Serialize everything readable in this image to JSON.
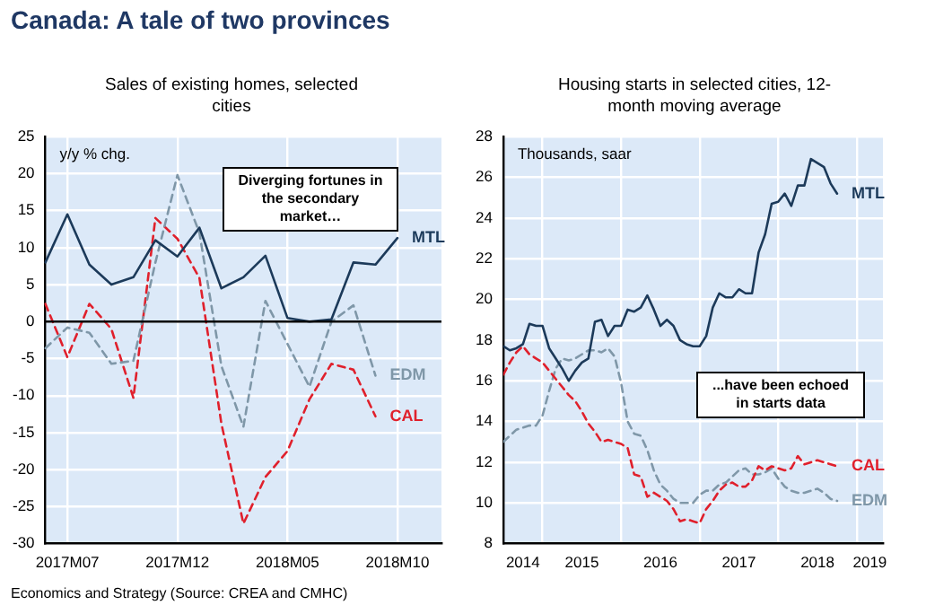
{
  "chart_data": [
    {
      "type": "line",
      "title": "Canada: A tale of two provinces",
      "subtitle": "Sales of existing homes, selected cities",
      "ylabel": "y/y % chg.",
      "annotations": [
        "Diverging fortunes in the secondary market…",
        "Economics and Strategy (Source: CREA and CMHC)"
      ],
      "categories": [
        null,
        "2017M07",
        null,
        null,
        null,
        null,
        "2017M12",
        null,
        null,
        null,
        null,
        "2018M05",
        null,
        null,
        null,
        null,
        "2018M10",
        null,
        null
      ],
      "series": [
        {
          "name": "MTL",
          "color": "#1c3a5a",
          "line_style": "solid",
          "values": [
            8,
            14.5,
            7.7,
            5,
            6,
            11,
            8.8,
            12.7,
            4.5,
            6,
            8.9,
            0.5,
            0,
            0.3,
            8,
            7.7,
            11.3,
            null,
            null
          ]
        },
        {
          "name": "EDM",
          "color": "#7f97a8",
          "line_style": "dashed",
          "values": [
            -3.6,
            -0.8,
            -1.5,
            -5.7,
            -5.3,
            8,
            19.8,
            12,
            -6,
            -14.2,
            2.8,
            -3,
            -8.8,
            0,
            2.2,
            -7.3,
            null,
            null,
            null
          ]
        },
        {
          "name": "CAL",
          "color": "#e0202c",
          "line_style": "dashed",
          "values": [
            2.4,
            -4.8,
            2.4,
            -1,
            -10.3,
            14,
            11.2,
            5.9,
            -13.8,
            -27.3,
            -21,
            -17.5,
            -10.5,
            -5.7,
            -6.5,
            -12.8,
            null,
            null,
            null
          ]
        }
      ],
      "ylim": [
        -30,
        25
      ],
      "yticks": [
        -30,
        -25,
        -20,
        -15,
        -10,
        -5,
        0,
        5,
        10,
        15,
        20,
        25
      ],
      "ref_lines": [
        {
          "axis": "y",
          "value": 0,
          "color": "#000000"
        }
      ],
      "grid": true,
      "legend": false,
      "marker": "none"
    },
    {
      "type": "line",
      "subtitle": "Housing starts in selected cities, 12-month moving average",
      "ylabel": "Thousands, saar",
      "annotations": [
        "...have been echoed in starts data"
      ],
      "x": [
        "2014-07",
        "2014-08",
        "2014-09",
        "2014-10",
        "2014-11",
        "2014-12",
        "2015-01",
        "2015-02",
        "2015-03",
        "2015-04",
        "2015-05",
        "2015-06",
        "2015-07",
        "2015-08",
        "2015-09",
        "2015-10",
        "2015-11",
        "2015-12",
        "2016-01",
        "2016-02",
        "2016-03",
        "2016-04",
        "2016-05",
        "2016-06",
        "2016-07",
        "2016-08",
        "2016-09",
        "2016-10",
        "2016-11",
        "2016-12",
        "2017-01",
        "2017-02",
        "2017-03",
        "2017-04",
        "2017-05",
        "2017-06",
        "2017-07",
        "2017-08",
        "2017-09",
        "2017-10",
        "2017-11",
        "2017-12",
        "2018-01",
        "2018-02",
        "2018-03",
        "2018-04",
        "2018-05",
        "2018-06",
        "2018-07",
        "2018-08",
        "2018-09",
        "2018-10"
      ],
      "series": [
        {
          "name": "MTL",
          "color": "#1c3a5a",
          "line_style": "solid",
          "values": [
            17.7,
            17.5,
            17.6,
            17.8,
            18.8,
            18.7,
            18.7,
            17.6,
            17.1,
            16.6,
            16.0,
            16.5,
            16.9,
            17.1,
            18.9,
            19.0,
            18.2,
            18.7,
            18.7,
            19.5,
            19.4,
            19.6,
            20.2,
            19.5,
            18.7,
            19.0,
            18.7,
            18.0,
            17.8,
            17.7,
            17.7,
            18.2,
            19.6,
            20.3,
            20.1,
            20.1,
            20.5,
            20.3,
            20.3,
            22.3,
            23.2,
            24.7,
            24.8,
            25.2,
            24.6,
            25.6,
            25.6,
            26.9,
            26.7,
            26.5,
            25.7,
            25.2
          ]
        },
        {
          "name": "CAL",
          "color": "#e0202c",
          "line_style": "dashed",
          "values": [
            16.3,
            16.9,
            17.4,
            17.7,
            17.3,
            17.1,
            16.9,
            16.5,
            16.1,
            15.7,
            15.3,
            15.0,
            14.5,
            13.9,
            13.5,
            13.0,
            13.1,
            13.0,
            12.9,
            12.7,
            11.4,
            11.3,
            10.3,
            10.5,
            10.3,
            10.1,
            9.7,
            9.1,
            9.2,
            9.1,
            9.0,
            9.7,
            10.1,
            10.6,
            10.9,
            11.0,
            10.8,
            10.8,
            11.1,
            11.8,
            11.6,
            11.8,
            11.7,
            11.6,
            11.7,
            12.3,
            11.9,
            12.0,
            12.1,
            12.0,
            11.9,
            11.8
          ]
        },
        {
          "name": "EDM",
          "color": "#7f97a8",
          "line_style": "dashed",
          "values": [
            13.0,
            13.3,
            13.6,
            13.7,
            13.8,
            13.8,
            14.3,
            15.5,
            16.6,
            17.1,
            17.0,
            17.1,
            17.3,
            17.5,
            17.5,
            17.4,
            17.6,
            17.2,
            15.9,
            14.0,
            13.4,
            13.3,
            12.6,
            11.6,
            10.9,
            10.6,
            10.2,
            10.0,
            10.0,
            10.0,
            10.4,
            10.6,
            10.6,
            10.9,
            11.0,
            11.3,
            11.6,
            11.7,
            11.4,
            11.4,
            11.5,
            11.7,
            11.2,
            10.8,
            10.6,
            10.5,
            10.5,
            10.6,
            10.7,
            10.5,
            10.2,
            10.1
          ]
        }
      ],
      "xlim": [
        "2014-07",
        "2019-05"
      ],
      "xticks": [
        {
          "value": "2014-10",
          "label": "2014"
        },
        {
          "value": "2015-01",
          "label": null
        },
        {
          "value": "2015-07",
          "label": "2015"
        },
        {
          "value": "2016-01",
          "label": null
        },
        {
          "value": "2016-07",
          "label": "2016"
        },
        {
          "value": "2017-01",
          "label": null
        },
        {
          "value": "2017-07",
          "label": "2017"
        },
        {
          "value": "2018-01",
          "label": null
        },
        {
          "value": "2018-07",
          "label": "2018"
        },
        {
          "value": "2019-01",
          "label": null
        },
        {
          "value": "2019-03",
          "label": "2019"
        }
      ],
      "ylim": [
        8,
        28
      ],
      "yticks": [
        8,
        10,
        12,
        14,
        16,
        18,
        20,
        22,
        24,
        26,
        28
      ],
      "grid": true,
      "legend": false,
      "marker": "none"
    }
  ]
}
